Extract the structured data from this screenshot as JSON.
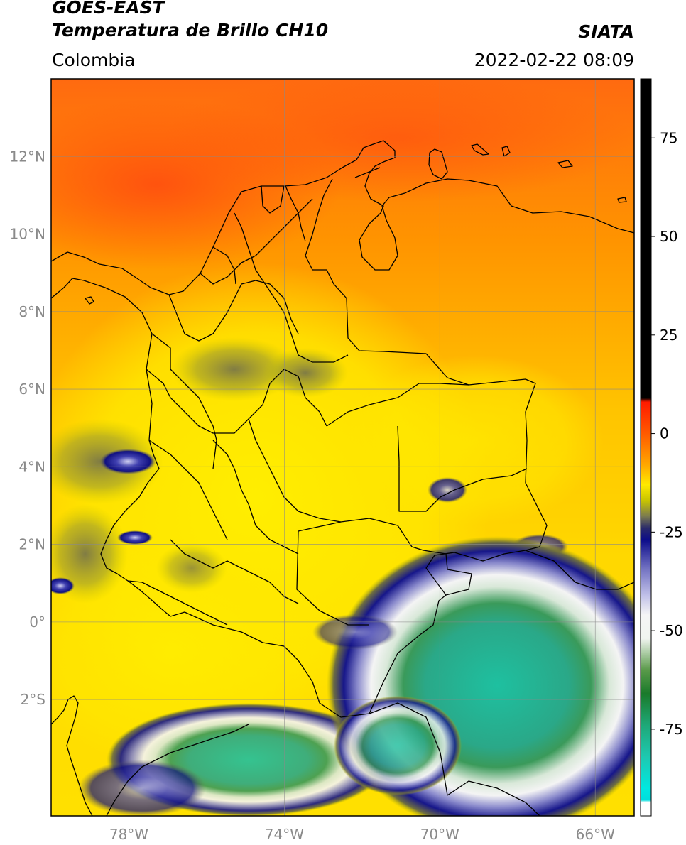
{
  "header": {
    "satellite": "GOES-EAST",
    "product": "Temperatura de Brillo CH10",
    "region": "Colombia",
    "organization": "SIATA",
    "timestamp": "2022-02-22 08:09"
  },
  "map": {
    "lon_range": [
      -80,
      -65
    ],
    "lat_range": [
      -5,
      14
    ],
    "lon_ticks": [
      {
        "value": -78,
        "label": "78°W"
      },
      {
        "value": -74,
        "label": "74°W"
      },
      {
        "value": -70,
        "label": "70°W"
      },
      {
        "value": -66,
        "label": "66°W"
      }
    ],
    "lat_ticks": [
      {
        "value": 12,
        "label": "12°N"
      },
      {
        "value": 10,
        "label": "10°N"
      },
      {
        "value": 8,
        "label": "8°N"
      },
      {
        "value": 6,
        "label": "6°N"
      },
      {
        "value": 4,
        "label": "4°N"
      },
      {
        "value": 2,
        "label": "2°N"
      },
      {
        "value": 0,
        "label": "0°"
      },
      {
        "value": -2,
        "label": "2°S"
      }
    ],
    "gridlines": true,
    "background_color": "#ff9e00"
  },
  "colorbar": {
    "range": [
      -97,
      90
    ],
    "ticks": [
      {
        "value": 75,
        "label": "75"
      },
      {
        "value": 50,
        "label": "50"
      },
      {
        "value": 25,
        "label": "25"
      },
      {
        "value": 0,
        "label": "0"
      },
      {
        "value": -25,
        "label": "-25"
      },
      {
        "value": -50,
        "label": "-50"
      },
      {
        "value": -75,
        "label": "-75"
      }
    ],
    "stops": [
      {
        "value": 90,
        "color": "#000000"
      },
      {
        "value": 9,
        "color": "#000000"
      },
      {
        "value": 8,
        "color": "#ff1a00"
      },
      {
        "value": 0,
        "color": "#ff5a00"
      },
      {
        "value": -8,
        "color": "#ffa800"
      },
      {
        "value": -13,
        "color": "#ffea00"
      },
      {
        "value": -17,
        "color": "#c8c400"
      },
      {
        "value": -21,
        "color": "#7a7a50"
      },
      {
        "value": -24,
        "color": "#2a2a6a"
      },
      {
        "value": -27,
        "color": "#0c0c8a"
      },
      {
        "value": -34,
        "color": "#6f6fc0"
      },
      {
        "value": -41,
        "color": "#c0c0e8"
      },
      {
        "value": -46,
        "color": "#f5f5f5"
      },
      {
        "value": -52,
        "color": "#f0f5f0"
      },
      {
        "value": -60,
        "color": "#5a9a4a"
      },
      {
        "value": -66,
        "color": "#1a7a2a"
      },
      {
        "value": -74,
        "color": "#1ea878"
      },
      {
        "value": -82,
        "color": "#1ec8b0"
      },
      {
        "value": -90,
        "color": "#00e8e0"
      },
      {
        "value": -93,
        "color": "#00dede"
      },
      {
        "value": -93.5,
        "color": "#ffffff"
      },
      {
        "value": -97,
        "color": "#ffffff"
      }
    ]
  },
  "icons": {
    "country_borders": "border-lines",
    "coastline": "coastline"
  }
}
